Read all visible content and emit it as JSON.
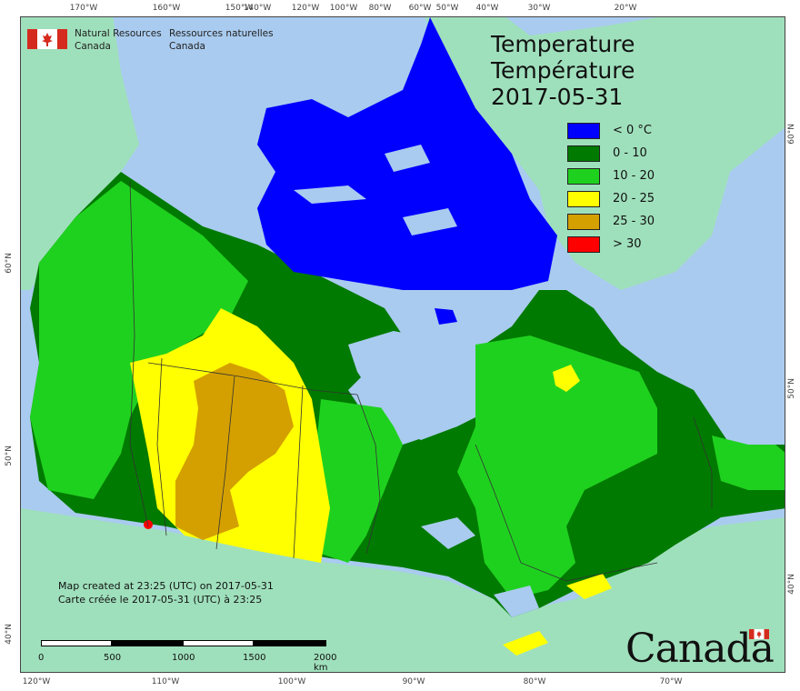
{
  "map": {
    "title_en": "Temperature",
    "title_fr": "Température",
    "date": "2017-05-31",
    "agency_en_line1": "Natural Resources",
    "agency_en_line2": "Canada",
    "agency_fr_line1": "Ressources naturelles",
    "agency_fr_line2": "Canada",
    "created_en": "Map created at 23:25 (UTC) on 2017-05-31",
    "created_fr": "Carte créée le 2017-05-31 (UTC) à 23:25",
    "wordmark": "Canada",
    "colors": {
      "ocean": "#a9cbef",
      "foreign_land": "#9fe0bc",
      "boundary": "#333333",
      "flag_red": "#d52b1e"
    },
    "legend": [
      {
        "label": "< 0 °C",
        "color": "#0000ff"
      },
      {
        "label": "0 - 10",
        "color": "#007a00"
      },
      {
        "label": "10 - 20",
        "color": "#1fd11f"
      },
      {
        "label": "20 - 25",
        "color": "#ffff00"
      },
      {
        "label": "25 - 30",
        "color": "#d4a000"
      },
      {
        "label": "> 30",
        "color": "#ff0000"
      }
    ],
    "scale": {
      "labels": [
        "0",
        "500",
        "1000",
        "1500",
        "2000 km"
      ]
    },
    "graticule_top": [
      "170°W",
      "160°W",
      "150°W",
      "140°W",
      "120°W",
      "100°W",
      "80°W",
      "60°W",
      "50°W",
      "40°W",
      "30°W",
      "20°W"
    ],
    "graticule_bottom": [
      "120°W",
      "110°W",
      "100°W",
      "90°W",
      "80°W",
      "70°W"
    ],
    "graticule_left": [
      "60°N",
      "50°N",
      "40°N"
    ],
    "graticule_right": [
      "60°N",
      "50°N",
      "40°N"
    ]
  }
}
